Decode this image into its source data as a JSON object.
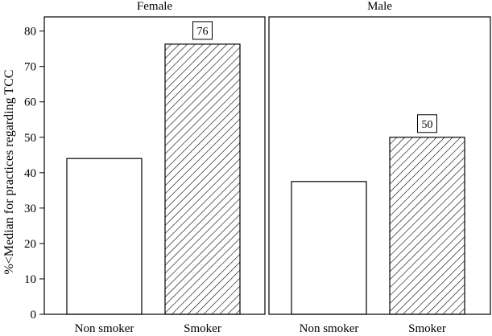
{
  "chart_data": {
    "type": "bar",
    "ylabel": "%<Median for practices regarding TCC",
    "ylim": [
      0,
      84
    ],
    "yticks": [
      0,
      10,
      20,
      30,
      40,
      50,
      60,
      70,
      80
    ],
    "grid": false,
    "panels": [
      {
        "title": "Female",
        "categories": [
          "Non smoker",
          "Smoker"
        ],
        "values": [
          44,
          76.3
        ],
        "patterns": [
          "none",
          "hatch"
        ],
        "data_labels": [
          null,
          "76"
        ]
      },
      {
        "title": "Male",
        "categories": [
          "Non smoker",
          "Smoker"
        ],
        "values": [
          37.5,
          50
        ],
        "patterns": [
          "none",
          "hatch"
        ],
        "data_labels": [
          null,
          "50"
        ]
      }
    ]
  }
}
